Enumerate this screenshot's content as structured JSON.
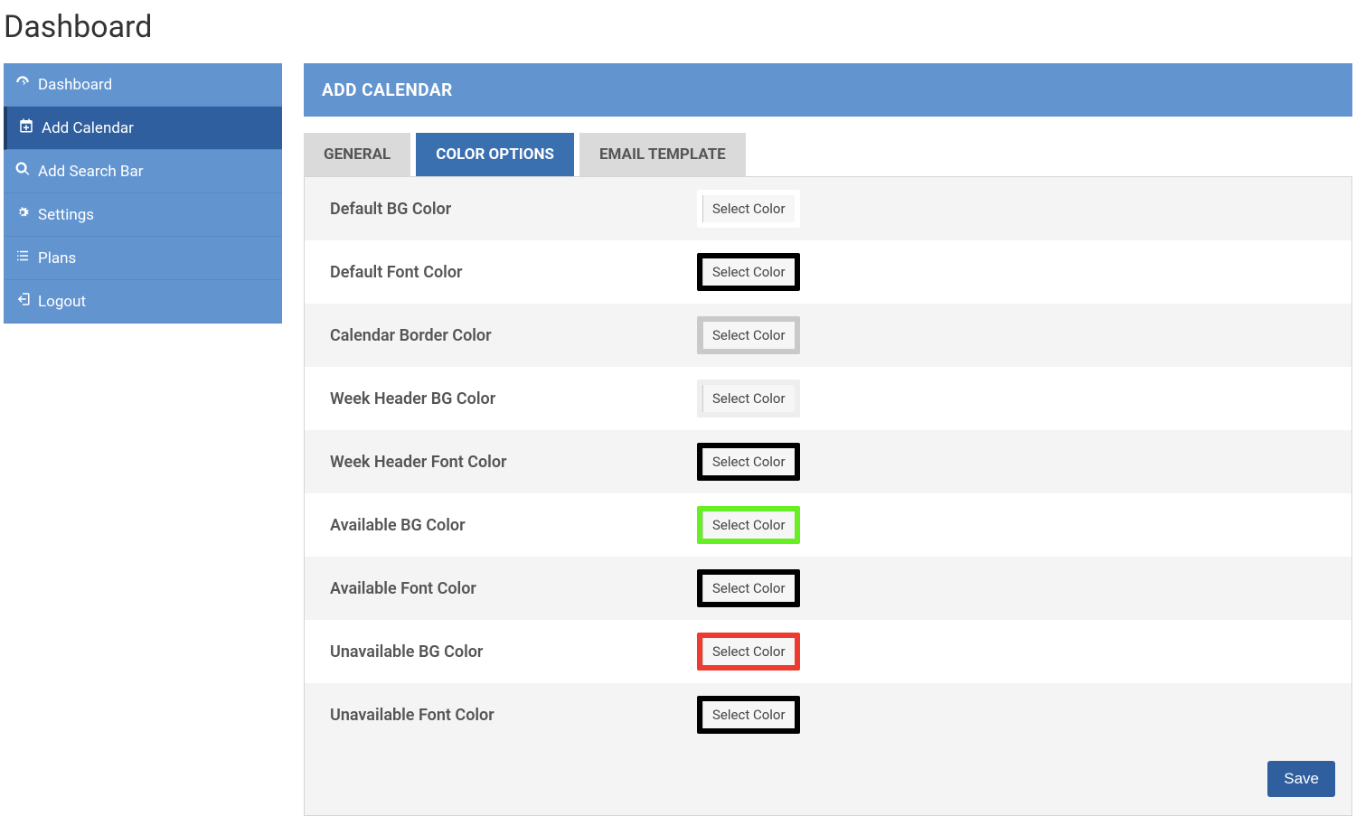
{
  "page_title": "Dashboard",
  "sidebar": {
    "items": [
      {
        "label": "Dashboard",
        "icon": "dashboard-icon",
        "active": false
      },
      {
        "label": "Add Calendar",
        "icon": "calendar-plus-icon",
        "active": true
      },
      {
        "label": "Add Search Bar",
        "icon": "search-icon",
        "active": false
      },
      {
        "label": "Settings",
        "icon": "gears-icon",
        "active": false
      },
      {
        "label": "Plans",
        "icon": "list-icon",
        "active": false
      },
      {
        "label": "Logout",
        "icon": "sign-out-icon",
        "active": false
      }
    ]
  },
  "panel": {
    "title": "ADD CALENDAR",
    "tabs": [
      {
        "label": "GENERAL",
        "active": false
      },
      {
        "label": "COLOR OPTIONS",
        "active": true
      },
      {
        "label": "EMAIL TEMPLATE",
        "active": false
      }
    ],
    "color_rows": [
      {
        "label": "Default BG Color",
        "button": "Select Color",
        "swatch_color": "#ffffff"
      },
      {
        "label": "Default Font Color",
        "button": "Select Color",
        "swatch_color": "#000000"
      },
      {
        "label": "Calendar Border Color",
        "button": "Select Color",
        "swatch_color": "#c9c9c9"
      },
      {
        "label": "Week Header BG Color",
        "button": "Select Color",
        "swatch_color": "#eeeeee"
      },
      {
        "label": "Week Header Font Color",
        "button": "Select Color",
        "swatch_color": "#000000"
      },
      {
        "label": "Available BG Color",
        "button": "Select Color",
        "swatch_color": "#66ef22"
      },
      {
        "label": "Available Font Color",
        "button": "Select Color",
        "swatch_color": "#000000"
      },
      {
        "label": "Unavailable BG Color",
        "button": "Select Color",
        "swatch_color": "#ef3b2f"
      },
      {
        "label": "Unavailable Font Color",
        "button": "Select Color",
        "swatch_color": "#000000"
      }
    ],
    "save_label": "Save"
  },
  "colors": {
    "sidebar_bg": "#6294d0",
    "sidebar_active_bg": "#2f5f9e",
    "panel_header_bg": "#6294d0",
    "tab_inactive_bg": "#dadada",
    "tab_active_bg": "#3a6fb0",
    "save_btn_bg": "#2f5f9e"
  }
}
